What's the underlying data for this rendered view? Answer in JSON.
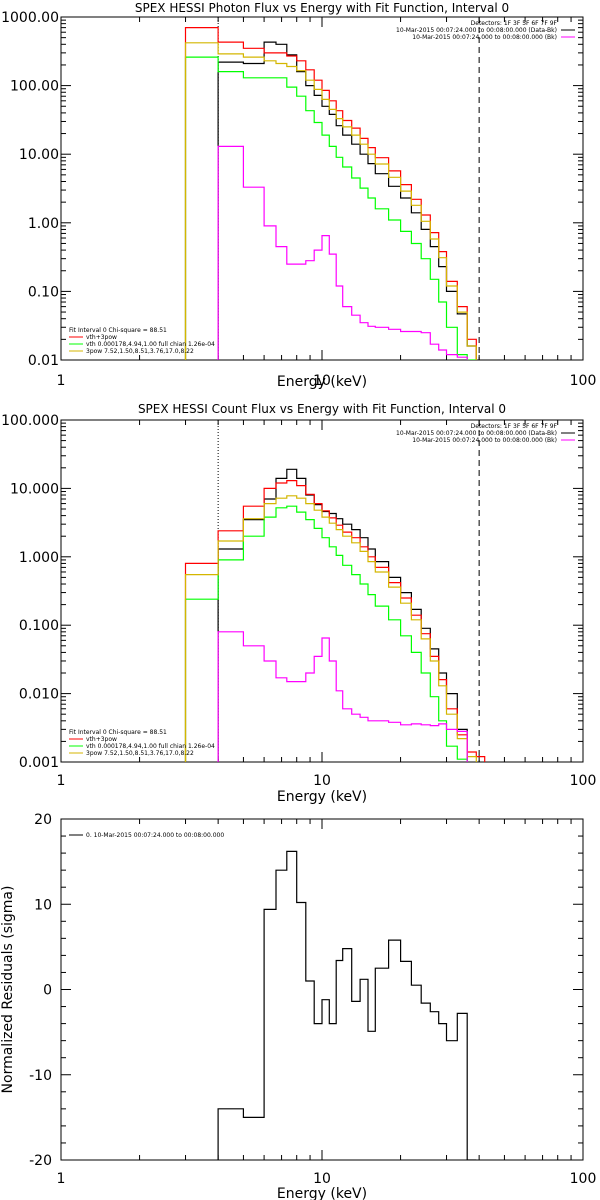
{
  "chart_data": [
    {
      "type": "line",
      "step": true,
      "title": "SPEX HESSI Photon Flux vs Energy with Fit Function, Interval 0",
      "xlabel": "Energy (keV)",
      "ylabel": "",
      "xscale": "log",
      "yscale": "log",
      "xlim": [
        1,
        100
      ],
      "ylim": [
        0.01,
        1000
      ],
      "xticks": [
        "1",
        "10",
        "100"
      ],
      "yticks": [
        "1000.00",
        "100.00",
        "10.00",
        "1.00",
        "0.10",
        "0.01"
      ],
      "energy_edges": [
        3,
        4,
        5,
        6,
        6.667,
        7.333,
        8,
        8.667,
        9.333,
        10,
        10.667,
        11.333,
        12,
        13,
        14,
        15,
        16,
        18,
        20,
        22,
        24,
        26,
        28,
        30,
        33,
        36,
        39
      ],
      "series": [
        {
          "name": "",
          "color": "#000000",
          "values": [
            null,
            220,
            210,
            430,
            400,
            280,
            160,
            100,
            72,
            50,
            38,
            26,
            19,
            14,
            10,
            7.3,
            5.2,
            3.4,
            2.3,
            1.4,
            0.8,
            0.45,
            0.23,
            0.1,
            0.047,
            0.016
          ]
        },
        {
          "name": "vth+3pow",
          "color": "#ff0000",
          "values": [
            700,
            430,
            350,
            300,
            300,
            270,
            230,
            170,
            120,
            85,
            60,
            43,
            31,
            24,
            17,
            12.5,
            8.9,
            5.7,
            3.6,
            2.2,
            1.3,
            0.72,
            0.38,
            0.14,
            0.06,
            0.02
          ]
        },
        {
          "name": "vth 0.000178,4.94,1.00  full chian 1.26e-04",
          "color": "#00ff00",
          "values": [
            260,
            160,
            130,
            130,
            130,
            95,
            70,
            43,
            29,
            19,
            13,
            9,
            6.5,
            4.5,
            3.2,
            2.3,
            1.6,
            1.1,
            0.75,
            0.5,
            0.3,
            0.15,
            0.07,
            0.03,
            0.012,
            0.007
          ]
        },
        {
          "name": "3pow 7.52,1.50,8.51,3.76,17.0,8.22",
          "color": "#d4b600",
          "values": [
            420,
            290,
            260,
            230,
            210,
            190,
            165,
            120,
            88,
            63,
            45,
            33,
            25,
            19,
            14,
            10,
            7.2,
            4.6,
            2.9,
            1.8,
            1.05,
            0.58,
            0.31,
            0.12,
            0.05,
            0.016
          ]
        },
        {
          "name": "",
          "color": "#ff00ff",
          "values": [
            null,
            13,
            3.3,
            0.9,
            0.45,
            0.25,
            0.25,
            0.28,
            0.4,
            0.65,
            0.35,
            0.12,
            0.06,
            0.045,
            0.035,
            0.031,
            0.03,
            0.028,
            0.026,
            0.026,
            0.025,
            0.017,
            0.014,
            0.012,
            0.011,
            null
          ]
        }
      ],
      "vlines": [
        {
          "x": 4,
          "style": "dotted"
        },
        {
          "x": 40,
          "style": "dashed"
        }
      ],
      "legend_top": [
        "Detectors: 1F 3F 5F 6F 7F 9F",
        "10-Mar-2015 00:07:24.000 to 00:08:00.000 (Data-Bk)",
        "10-Mar-2015 00:07:24.000 to 00:08:00.000 (Bk)"
      ],
      "legend_top_colors": [
        "",
        "#000000",
        "#ff00ff"
      ],
      "legend_bottom": [
        "Fit Interval 0   Chi-square = 88.51",
        "vth+3pow",
        "vth 0.000178,4.94,1.00  full chian 1.26e-04",
        "3pow 7.52,1.50,8.51,3.76,17.0,8.22"
      ],
      "legend_bottom_colors": [
        "",
        "#ff0000",
        "#00ff00",
        "#d4b600"
      ]
    },
    {
      "type": "line",
      "step": true,
      "title": "SPEX HESSI Count Flux vs Energy with Fit Function, Interval 0",
      "xlabel": "Energy (keV)",
      "ylabel": "",
      "xscale": "log",
      "yscale": "log",
      "xlim": [
        1,
        100
      ],
      "ylim": [
        0.001,
        100
      ],
      "xticks": [
        "1",
        "10",
        "100"
      ],
      "yticks": [
        "100.000",
        "10.000",
        "1.000",
        "0.100",
        "0.010",
        "0.001"
      ],
      "energy_edges": [
        3,
        4,
        5,
        6,
        6.667,
        7.333,
        8,
        8.667,
        9.333,
        10,
        10.667,
        11.333,
        12,
        13,
        14,
        15,
        16,
        18,
        20,
        22,
        24,
        26,
        28,
        30,
        33,
        36,
        39,
        42,
        45
      ],
      "series": [
        {
          "name": "",
          "color": "#000000",
          "values": [
            null,
            1.3,
            3.5,
            7,
            14,
            19,
            14,
            8,
            5.8,
            4.6,
            4.3,
            3.6,
            3,
            2.5,
            1.9,
            1.3,
            0.85,
            0.5,
            0.3,
            0.17,
            0.09,
            0.045,
            0.02,
            0.01,
            0.003,
            null,
            null,
            null
          ]
        },
        {
          "name": "vth+3pow",
          "color": "#ff0000",
          "values": [
            0.8,
            2.4,
            5.5,
            10,
            12,
            13,
            11,
            8.2,
            6,
            4.7,
            3.7,
            2.9,
            2.3,
            1.9,
            1.4,
            1,
            0.7,
            0.42,
            0.25,
            0.14,
            0.075,
            0.035,
            0.016,
            0.006,
            0.0025,
            0.0014,
            0.0012,
            null
          ]
        },
        {
          "name": "vth 0.000178,4.94,1.00  full chian 1.26e-04",
          "color": "#00ff00",
          "values": [
            0.24,
            0.9,
            2,
            3.8,
            5.2,
            5.5,
            4.5,
            3.5,
            2.6,
            1.9,
            1.4,
            1.05,
            0.75,
            0.55,
            0.4,
            0.28,
            0.19,
            0.12,
            0.07,
            0.04,
            0.02,
            0.009,
            0.004,
            0.0017,
            0.0011,
            null,
            null,
            null
          ]
        },
        {
          "name": "3pow 7.52,1.50,8.51,3.76,17.0,8.22",
          "color": "#d4b600",
          "values": [
            0.55,
            1.7,
            3.6,
            6,
            7.2,
            7.8,
            7.2,
            6,
            4.8,
            3.8,
            3.1,
            2.5,
            2,
            1.6,
            1.2,
            0.85,
            0.6,
            0.36,
            0.21,
            0.12,
            0.063,
            0.03,
            0.013,
            0.005,
            0.0022,
            0.0012,
            null,
            null
          ]
        },
        {
          "name": "",
          "color": "#ff00ff",
          "values": [
            null,
            0.08,
            0.05,
            0.03,
            0.017,
            0.015,
            0.015,
            0.02,
            0.035,
            0.065,
            0.03,
            0.011,
            0.006,
            0.005,
            0.0045,
            0.004,
            0.004,
            0.0038,
            0.0035,
            0.0036,
            0.0035,
            0.0034,
            0.0036,
            0.003,
            0.0028,
            null,
            null,
            null
          ]
        }
      ],
      "vlines": [
        {
          "x": 4,
          "style": "dotted"
        },
        {
          "x": 40,
          "style": "dashed"
        }
      ],
      "legend_top": [
        "Detectors: 1F 3F 5F 6F 7F 9F",
        "10-Mar-2015 00:07:24.000 to 00:08:00.000 (Data-Bk)",
        "10-Mar-2015 00:07:24.000 to 00:08:00.000 (Bk)"
      ],
      "legend_top_colors": [
        "",
        "#000000",
        "#ff00ff"
      ],
      "legend_bottom": [
        "Fit Interval 0   Chi-square = 88.51",
        "vth+3pow",
        "vth 0.000178,4.94,1.00  full chian 1.26e-04",
        "3pow 7.52,1.50,8.51,3.76,17.0,8.22"
      ],
      "legend_bottom_colors": [
        "",
        "#ff0000",
        "#00ff00",
        "#d4b600"
      ]
    },
    {
      "type": "line",
      "step": true,
      "title": "",
      "xlabel": "Energy (keV)",
      "ylabel": "Normalized Residuals (sigma)",
      "xscale": "log",
      "yscale": "linear",
      "xlim": [
        1,
        100
      ],
      "ylim": [
        -20,
        20
      ],
      "xticks": [
        "1",
        "10",
        "100"
      ],
      "yticks": [
        "20",
        "10",
        "0",
        "-10",
        "-20"
      ],
      "energy_edges": [
        4,
        5,
        6,
        6.667,
        7.333,
        8,
        8.667,
        9.333,
        10,
        10.667,
        11.333,
        12,
        13,
        14,
        15,
        16,
        18,
        20,
        22,
        24,
        26,
        28,
        30,
        33,
        36,
        39
      ],
      "series": [
        {
          "name": "0. 10-Mar-2015 00:07:24.000 to 00:08:00.000",
          "color": "#000000",
          "values": [
            -14,
            -15,
            9.4,
            14,
            16.2,
            10.2,
            1,
            -4,
            -1.2,
            -4,
            3.4,
            4.8,
            -1.4,
            1.2,
            -4.9,
            2.5,
            5.8,
            3.3,
            0.5,
            -1.6,
            -2.6,
            -4,
            -6,
            -2.8,
            -20
          ]
        }
      ],
      "vlines": [],
      "legend_top": [
        "0. 10-Mar-2015 00:07:24.000 to 00:08:00.000"
      ],
      "legend_top_colors": [
        "#000000"
      ],
      "legend_bottom": [],
      "legend_bottom_colors": []
    }
  ]
}
